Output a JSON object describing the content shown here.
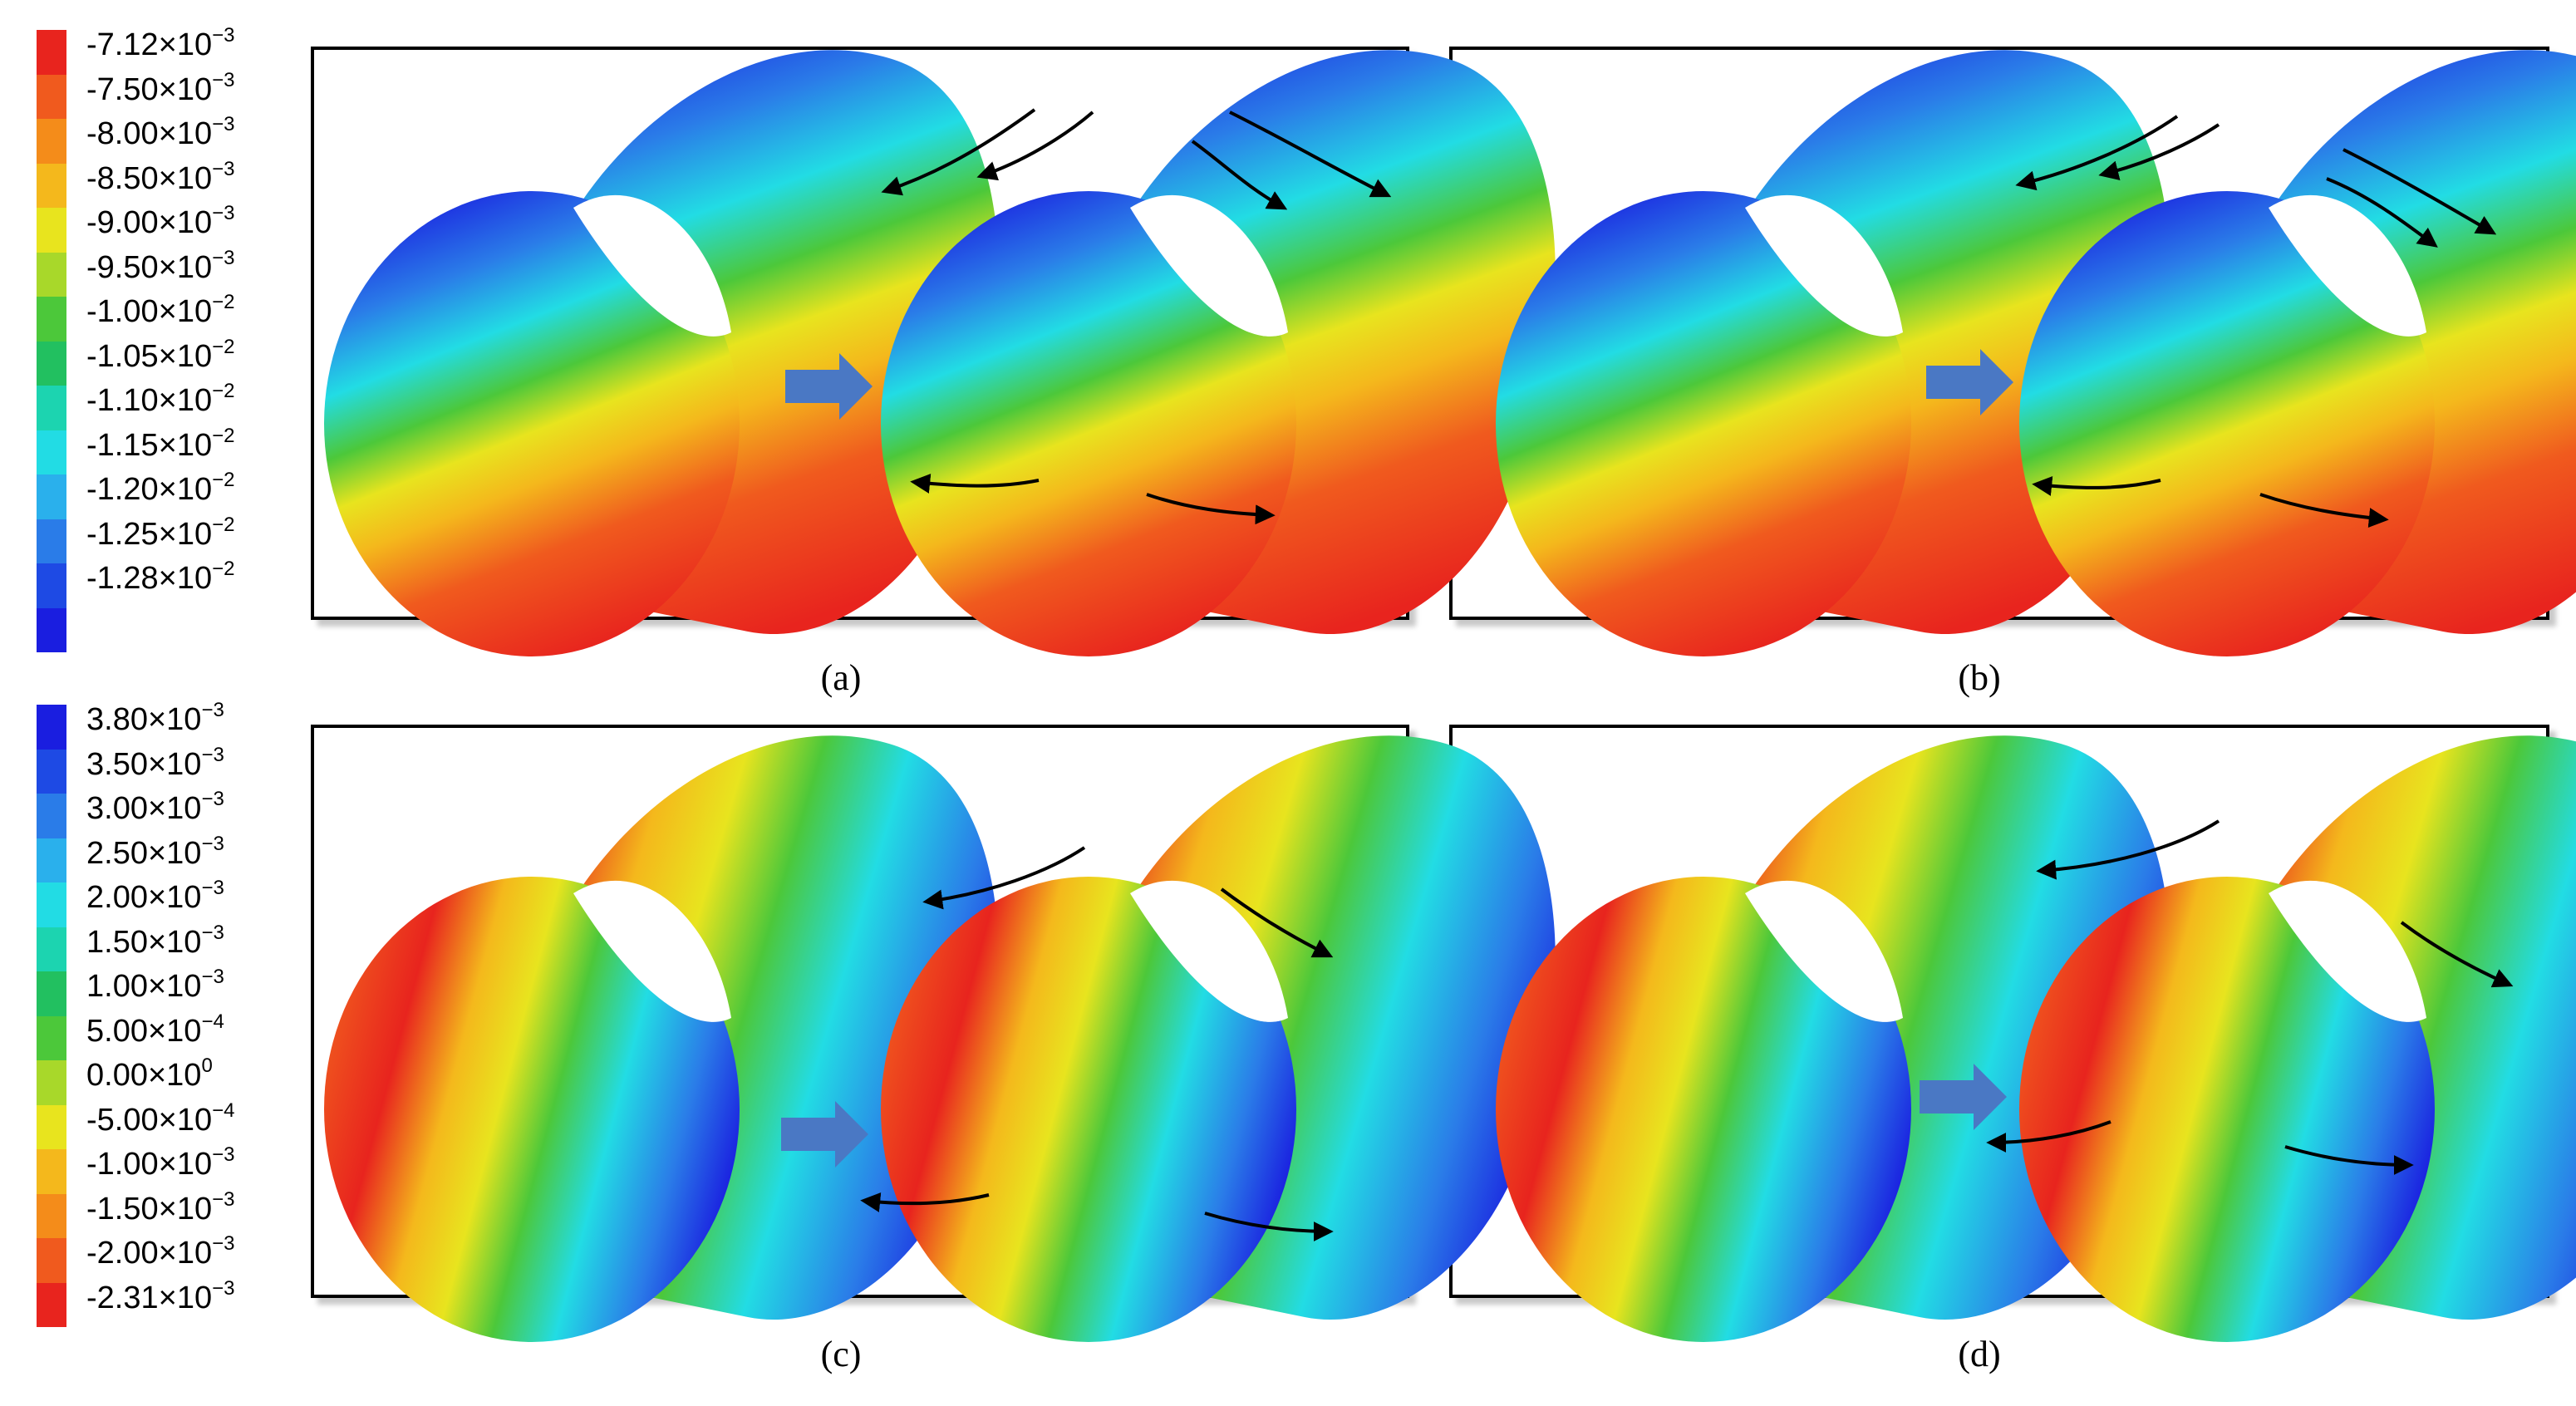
{
  "legend_top": {
    "colors": [
      "#e8241e",
      "#f05a1e",
      "#f48c1a",
      "#f4b81c",
      "#e8e41e",
      "#a8d82a",
      "#4cc83a",
      "#22c060",
      "#1cd4b0",
      "#22dce4",
      "#2ab0ec",
      "#2a7ce8",
      "#1e4ae4",
      "#1a1ee0"
    ],
    "ticks": [
      {
        "m": "-7.12",
        "e": "-3"
      },
      {
        "m": "-7.50",
        "e": "-3"
      },
      {
        "m": "-8.00",
        "e": "-3"
      },
      {
        "m": "-8.50",
        "e": "-3"
      },
      {
        "m": "-9.00",
        "e": "-3"
      },
      {
        "m": "-9.50",
        "e": "-3"
      },
      {
        "m": "-1.00",
        "e": "-2"
      },
      {
        "m": "-1.05",
        "e": "-2"
      },
      {
        "m": "-1.10",
        "e": "-2"
      },
      {
        "m": "-1.15",
        "e": "-2"
      },
      {
        "m": "-1.20",
        "e": "-2"
      },
      {
        "m": "-1.25",
        "e": "-2"
      },
      {
        "m": "-1.28",
        "e": "-2"
      }
    ]
  },
  "legend_bottom": {
    "colors": [
      "#1a1ee0",
      "#1e4ae4",
      "#2a7ce8",
      "#2ab0ec",
      "#22dce4",
      "#1cd4b0",
      "#22c060",
      "#4cc83a",
      "#a8d82a",
      "#e8e41e",
      "#f4b81c",
      "#f48c1a",
      "#f05a1e",
      "#e8241e"
    ],
    "ticks": [
      {
        "m": "3.80",
        "e": "-3"
      },
      {
        "m": "3.50",
        "e": "-3"
      },
      {
        "m": "3.00",
        "e": "-3"
      },
      {
        "m": "2.50",
        "e": "-3"
      },
      {
        "m": "2.00",
        "e": "-3"
      },
      {
        "m": "1.50",
        "e": "-3"
      },
      {
        "m": "1.00",
        "e": "-3"
      },
      {
        "m": "5.00",
        "e": "-4"
      },
      {
        "m": "0.00",
        "e": "0"
      },
      {
        "m": "-5.00",
        "e": "-4"
      },
      {
        "m": "-1.00",
        "e": "-3"
      },
      {
        "m": "-1.50",
        "e": "-3"
      },
      {
        "m": "-2.00",
        "e": "-3"
      },
      {
        "m": "-2.31",
        "e": "-3"
      }
    ]
  },
  "captions": {
    "a": "(a)",
    "b": "(b)",
    "c": "(c)",
    "d": "(d)"
  },
  "colors": {
    "arrow_block": "#4a78c4",
    "frame": "#000000"
  }
}
